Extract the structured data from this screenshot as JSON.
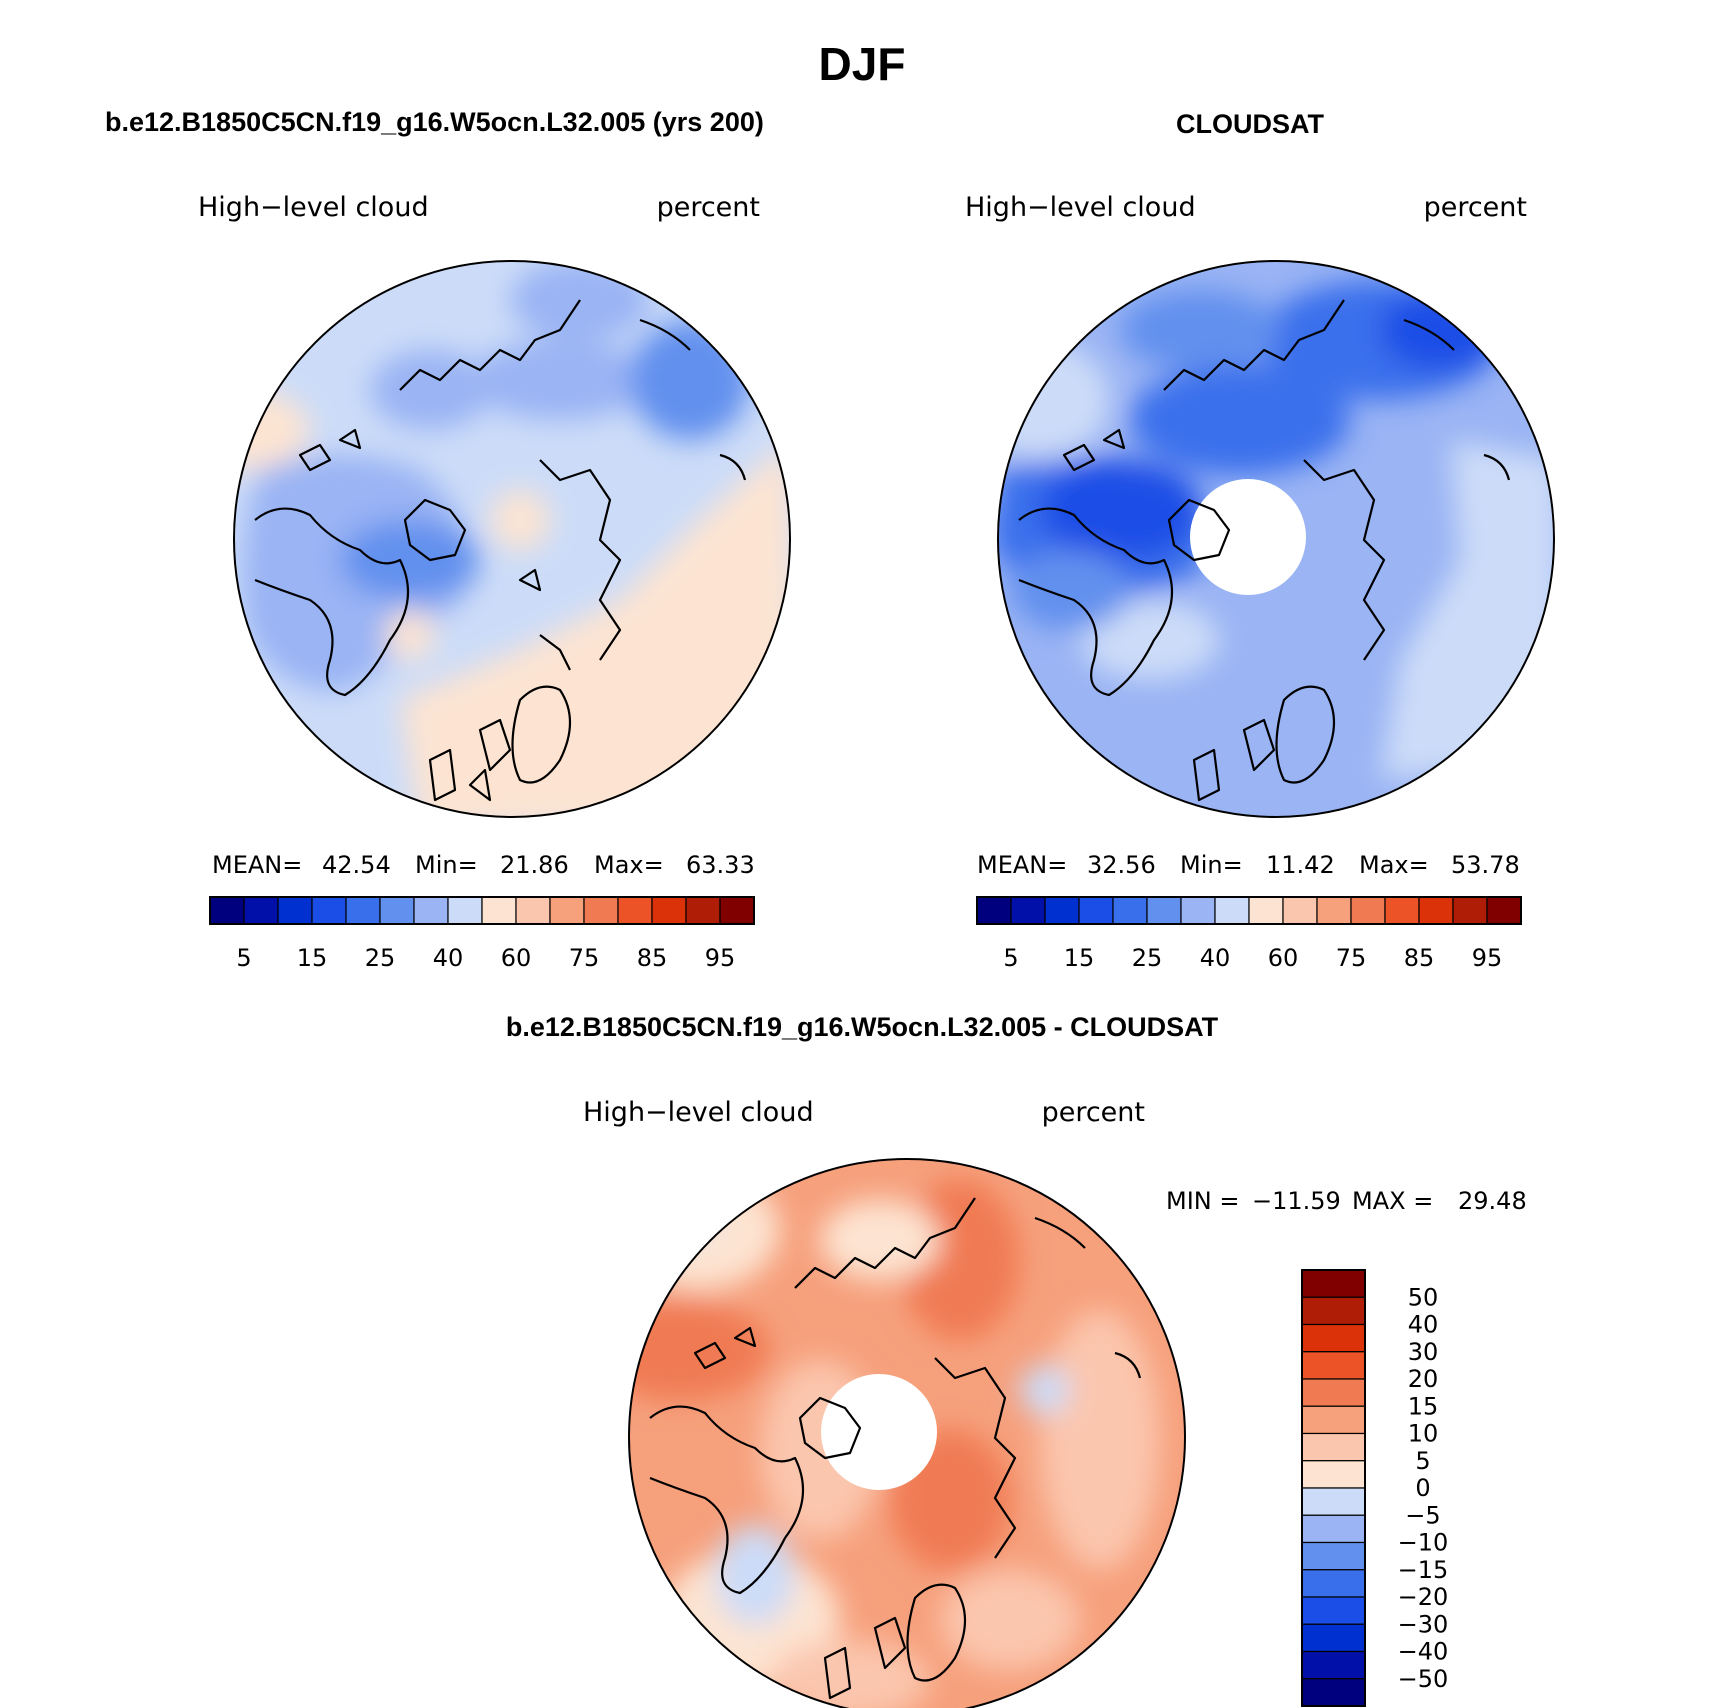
{
  "chart_data": {
    "type": "heatmap",
    "title": "DJF",
    "panels": [
      {
        "id": "model",
        "title": "b.e12.B1850C5CN.f19_g16.W5ocn.L32.005 (yrs 200)",
        "left_string": "High−level cloud",
        "right_string": "percent",
        "stats": {
          "mean_label": "MEAN=",
          "mean": "42.54",
          "min_label": "Min=",
          "min": "21.86",
          "max_label": "Max=",
          "max": "63.33"
        },
        "projection": "north-polar-stereographic",
        "missing_pole": false,
        "dominant_range": [
          25,
          60
        ]
      },
      {
        "id": "obs",
        "title": "CLOUDSAT",
        "left_string": "High−level cloud",
        "right_string": "percent",
        "stats": {
          "mean_label": "MEAN=",
          "mean": "32.56",
          "min_label": "Min=",
          "min": "11.42",
          "max_label": "Max=",
          "max": "53.78"
        },
        "projection": "north-polar-stereographic",
        "missing_pole": true,
        "dominant_range": [
          15,
          40
        ]
      },
      {
        "id": "diff",
        "title": "b.e12.B1850C5CN.f19_g16.W5ocn.L32.005 - CLOUDSAT",
        "left_string": "High−level cloud",
        "right_string": "percent",
        "stats": {
          "min_label": "MIN =",
          "min": "−11.59",
          "max_label": "MAX =",
          "max": "29.48"
        },
        "projection": "north-polar-stereographic",
        "missing_pole": true,
        "dominant_range": [
          5,
          20
        ]
      }
    ],
    "colorbar_abs": {
      "orientation": "horizontal",
      "colors": [
        "#00007f",
        "#0010a8",
        "#0030d0",
        "#1a4ee6",
        "#3a6fec",
        "#6290ee",
        "#9ab4f4",
        "#ccdcf8",
        "#fde4d2",
        "#fbc6ae",
        "#f6a07c",
        "#f07a52",
        "#ec5427",
        "#dc3209",
        "#b01d06",
        "#800000"
      ],
      "tick_labels": [
        "5",
        "15",
        "25",
        "40",
        "60",
        "75",
        "85",
        "95"
      ],
      "tick_boundaries": [
        1,
        3,
        5,
        7,
        9,
        11,
        13,
        15
      ]
    },
    "colorbar_diff": {
      "orientation": "vertical",
      "colors": [
        "#800000",
        "#b01d06",
        "#dc3209",
        "#ec5427",
        "#f07a52",
        "#f6a07c",
        "#fbc6ae",
        "#fde4d2",
        "#ccdcf8",
        "#9ab4f4",
        "#6290ee",
        "#3a6fec",
        "#1a4ee6",
        "#0030d0",
        "#0010a8",
        "#00007f"
      ],
      "tick_labels": [
        "50",
        "40",
        "30",
        "20",
        "15",
        "10",
        "5",
        "0",
        "−5",
        "−10",
        "−15",
        "−20",
        "−30",
        "−40",
        "−50"
      ]
    }
  }
}
